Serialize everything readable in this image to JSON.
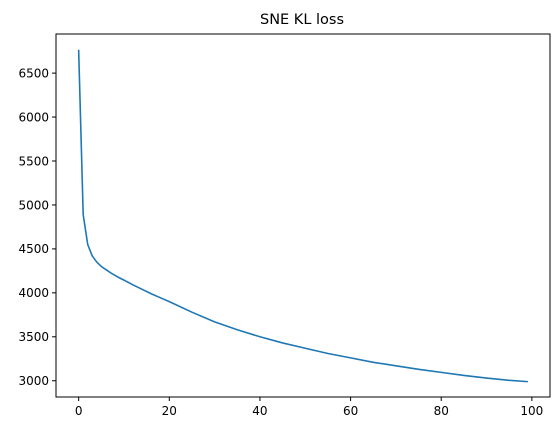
{
  "chart_data": {
    "type": "line",
    "title": "SNE KL loss",
    "xlabel": "",
    "ylabel": "",
    "xlim": [
      -5,
      104
    ],
    "ylim": [
      2815,
      6945
    ],
    "grid": false,
    "xticks": [
      0,
      20,
      40,
      60,
      80,
      100
    ],
    "yticks": [
      3000,
      3500,
      4000,
      4500,
      5000,
      5500,
      6000,
      6500
    ],
    "series": [
      {
        "color": "#1f77b4",
        "x": [
          0,
          1,
          2,
          3,
          4,
          5,
          6,
          7,
          8,
          9,
          10,
          12,
          14,
          16,
          18,
          20,
          25,
          30,
          35,
          40,
          45,
          50,
          55,
          60,
          65,
          70,
          75,
          80,
          85,
          90,
          95,
          99
        ],
        "y": [
          6760,
          4890,
          4550,
          4420,
          4350,
          4300,
          4265,
          4230,
          4200,
          4170,
          4145,
          4090,
          4040,
          3990,
          3945,
          3900,
          3780,
          3670,
          3580,
          3500,
          3430,
          3370,
          3310,
          3260,
          3210,
          3170,
          3130,
          3095,
          3060,
          3030,
          3005,
          2990
        ]
      }
    ]
  }
}
